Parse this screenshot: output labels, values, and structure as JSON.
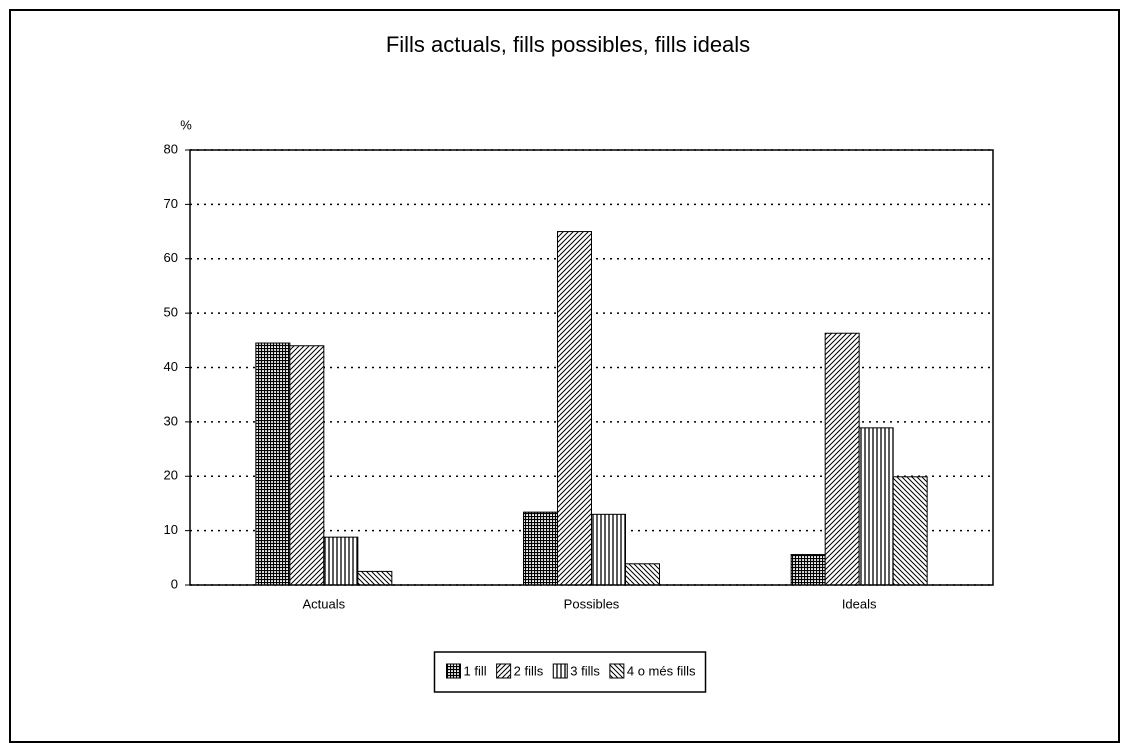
{
  "chart_data": {
    "type": "bar",
    "title": "Fills actuals, fills possibles, fills ideals",
    "y_label": "%",
    "categories": [
      "Actuals",
      "Possibles",
      "Ideals"
    ],
    "series": [
      {
        "name": "1 fill",
        "color": "#000000",
        "pattern": "grid",
        "values": [
          44.5,
          13.4,
          5.6
        ]
      },
      {
        "name": "2 fills",
        "color": "#000000",
        "pattern": "diagonal-up",
        "values": [
          44.0,
          65.0,
          46.3
        ]
      },
      {
        "name": "3 fills",
        "color": "#000000",
        "pattern": "vertical",
        "values": [
          8.8,
          13.0,
          28.9
        ]
      },
      {
        "name": "4 o més fills",
        "color": "#000000",
        "pattern": "diagonal-down",
        "values": [
          2.5,
          3.9,
          19.9
        ]
      }
    ],
    "ylim": [
      0,
      80
    ],
    "yticks": [
      0,
      10,
      20,
      30,
      40,
      50,
      60,
      70,
      80
    ],
    "grid": true,
    "legend": "bottom"
  }
}
